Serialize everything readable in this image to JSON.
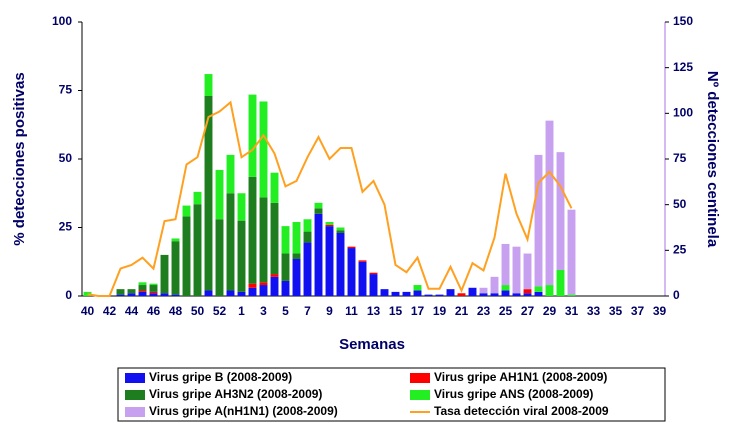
{
  "chart_data": {
    "type": "bar",
    "xlabel": "Semanas",
    "ylabel": "% detecciones positivas",
    "y2label": "Nº detecciones centinela",
    "categories": [
      40,
      null,
      42,
      null,
      44,
      null,
      46,
      null,
      48,
      null,
      50,
      null,
      52,
      null,
      1,
      null,
      3,
      null,
      5,
      null,
      7,
      null,
      9,
      null,
      11,
      null,
      13,
      null,
      15,
      null,
      17,
      null,
      19,
      null,
      21,
      null,
      23,
      null,
      25,
      null,
      27,
      null,
      29,
      null,
      31,
      null,
      33,
      null,
      35,
      null,
      37,
      null,
      39
    ],
    "ylim": [
      0,
      100
    ],
    "yticks": [
      0,
      25,
      50,
      75,
      100
    ],
    "y2lim": [
      0,
      150
    ],
    "y2ticks": [
      0,
      25,
      50,
      75,
      100,
      125,
      150
    ],
    "stacked": true,
    "series": [
      {
        "name": "Virus gripe B (2008-2009)",
        "color": "#1010f0",
        "values": [
          0,
          0,
          0,
          0.5,
          1,
          1.5,
          1,
          1,
          0.5,
          0,
          0,
          2,
          0,
          2,
          1.5,
          3,
          4,
          7,
          5.5,
          13.5,
          19.5,
          30,
          25.5,
          23,
          17.5,
          12.5,
          8,
          2.5,
          1.5,
          1.5,
          2,
          0.5,
          0.5,
          2.5,
          0,
          3,
          1,
          1,
          2,
          1,
          1,
          1.5,
          0,
          0,
          0,
          0,
          0,
          0,
          0,
          0,
          0,
          0,
          0
        ]
      },
      {
        "name": "Virus gripe AH1N1 (2008-2009)",
        "color": "#ff0000",
        "values": [
          0,
          0,
          0,
          0,
          0,
          0.5,
          0.5,
          0,
          0,
          0,
          0,
          0,
          0,
          0,
          0,
          1.5,
          1,
          1,
          0,
          0,
          0,
          0,
          0.5,
          0,
          0.5,
          0.5,
          0.5,
          0,
          0,
          0,
          0,
          0,
          0,
          0,
          1,
          0,
          0,
          0,
          0,
          0,
          1.5,
          0,
          0,
          0,
          0,
          0,
          0,
          0,
          0,
          0,
          0,
          0,
          0
        ]
      },
      {
        "name": "Virus gripe AH3N2 (2008-2009)",
        "color": "#1e7d1e",
        "values": [
          0,
          0,
          0,
          2,
          1.5,
          2,
          2.5,
          14,
          19.5,
          29,
          33.5,
          71,
          28,
          35.5,
          26,
          39,
          31,
          26,
          10,
          2,
          4,
          2,
          0,
          1,
          0,
          0,
          0,
          0,
          0,
          0,
          0,
          0,
          0,
          0,
          0,
          0,
          0,
          0,
          0,
          0,
          0,
          0,
          0,
          0,
          0,
          0,
          0,
          0,
          0,
          0,
          0,
          0,
          0
        ]
      },
      {
        "name": "Virus gripe ANS (2008-2009)",
        "color": "#22ee22",
        "values": [
          1.5,
          0,
          0,
          0,
          0,
          1,
          0.5,
          0,
          1,
          4,
          4.5,
          8,
          18,
          14,
          10,
          30,
          35,
          11,
          10,
          11.5,
          4.5,
          2,
          1,
          1,
          0,
          0,
          0,
          0,
          0,
          0,
          2,
          0,
          0,
          0,
          0,
          0,
          0,
          0,
          2,
          0,
          0,
          2,
          4,
          9.5,
          0.5,
          0,
          0,
          0,
          0,
          0,
          0,
          0,
          0
        ]
      },
      {
        "name": "Virus gripe A(nH1N1)  (2008-2009)",
        "color": "#c8a0f0",
        "values": [
          0,
          0,
          0,
          0,
          0,
          0,
          0,
          0,
          0,
          0,
          0,
          0,
          0,
          0,
          0,
          0,
          0,
          0,
          0,
          0,
          0,
          0,
          0,
          0,
          0,
          0,
          0,
          0,
          0,
          0,
          0,
          0,
          0,
          0,
          0,
          0,
          2,
          6,
          15,
          17,
          13,
          48,
          60,
          43,
          31,
          0,
          0,
          0,
          0,
          0,
          0,
          0,
          0
        ]
      },
      {
        "name": "Tasa detección viral 2008-2009",
        "color": "#ffa020",
        "axis": "y2",
        "values": [
          1,
          0,
          0,
          15,
          17,
          21,
          15,
          41,
          42,
          72,
          76,
          98,
          101,
          106,
          76,
          80,
          88,
          78,
          60,
          63,
          76,
          87,
          75,
          81,
          81,
          57,
          63,
          50,
          17,
          13,
          21,
          4,
          4,
          16,
          3,
          18,
          14,
          32,
          67,
          45,
          31,
          62,
          68,
          60,
          48,
          null,
          null,
          null,
          null,
          null,
          null,
          null,
          null
        ]
      }
    ]
  }
}
